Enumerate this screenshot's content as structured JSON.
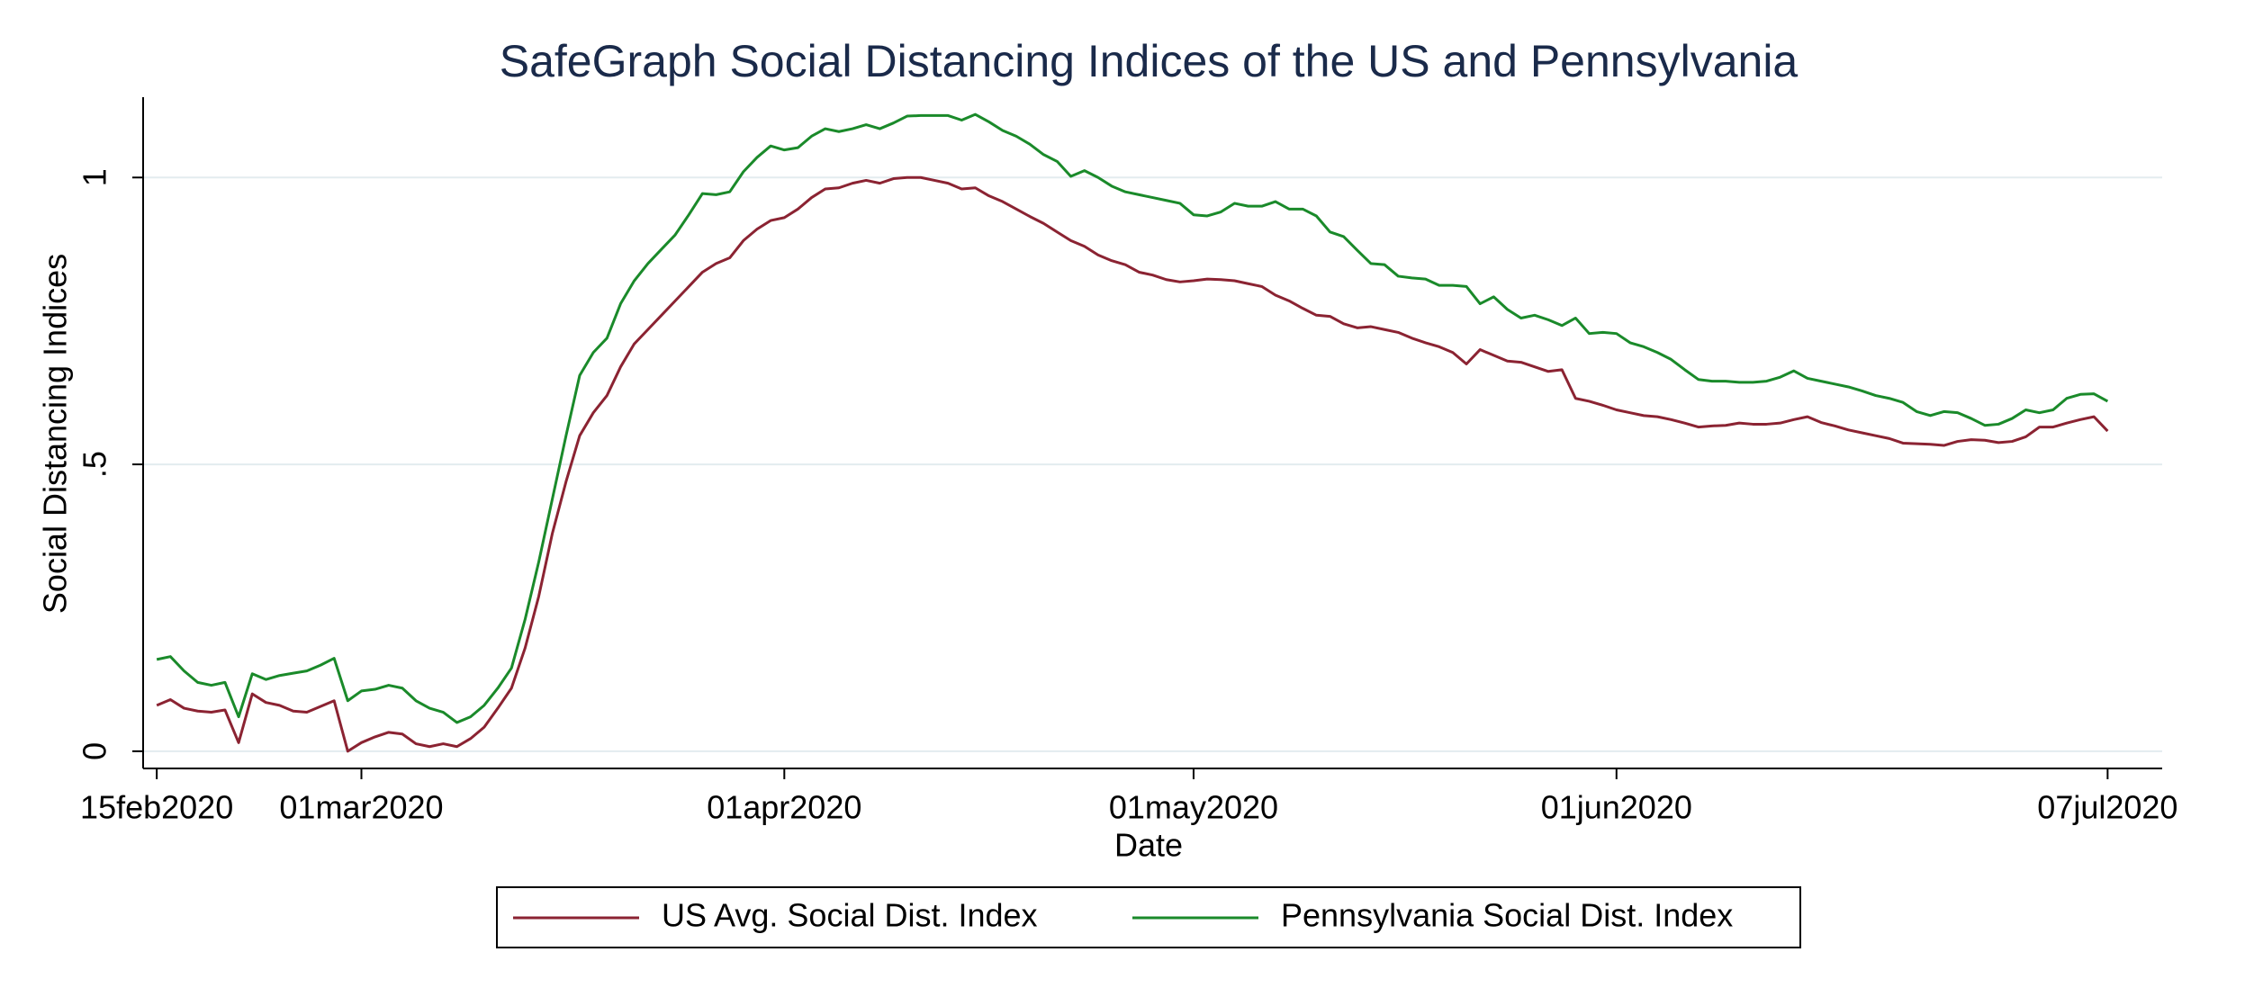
{
  "chart_data": {
    "type": "line",
    "title": "SafeGraph Social Distancing Indices of the US and Pennsylvania",
    "xlabel": "Date",
    "ylabel": "Social Distancing Indices",
    "x": [
      "2020-02-15",
      "2020-02-16",
      "2020-02-17",
      "2020-02-18",
      "2020-02-19",
      "2020-02-20",
      "2020-02-21",
      "2020-02-22",
      "2020-02-23",
      "2020-02-24",
      "2020-02-25",
      "2020-02-26",
      "2020-02-27",
      "2020-02-28",
      "2020-02-29",
      "2020-03-01",
      "2020-03-02",
      "2020-03-03",
      "2020-03-04",
      "2020-03-05",
      "2020-03-06",
      "2020-03-07",
      "2020-03-08",
      "2020-03-09",
      "2020-03-10",
      "2020-03-11",
      "2020-03-12",
      "2020-03-13",
      "2020-03-14",
      "2020-03-15",
      "2020-03-16",
      "2020-03-17",
      "2020-03-18",
      "2020-03-19",
      "2020-03-20",
      "2020-03-21",
      "2020-03-22",
      "2020-03-23",
      "2020-03-24",
      "2020-03-25",
      "2020-03-26",
      "2020-03-27",
      "2020-03-28",
      "2020-03-29",
      "2020-03-30",
      "2020-03-31",
      "2020-04-01",
      "2020-04-02",
      "2020-04-03",
      "2020-04-04",
      "2020-04-05",
      "2020-04-06",
      "2020-04-07",
      "2020-04-08",
      "2020-04-09",
      "2020-04-10",
      "2020-04-11",
      "2020-04-12",
      "2020-04-13",
      "2020-04-14",
      "2020-04-15",
      "2020-04-16",
      "2020-04-17",
      "2020-04-18",
      "2020-04-19",
      "2020-04-20",
      "2020-04-21",
      "2020-04-22",
      "2020-04-23",
      "2020-04-24",
      "2020-04-25",
      "2020-04-26",
      "2020-04-27",
      "2020-04-28",
      "2020-04-29",
      "2020-04-30",
      "2020-05-01",
      "2020-05-02",
      "2020-05-03",
      "2020-05-04",
      "2020-05-05",
      "2020-05-06",
      "2020-05-07",
      "2020-05-08",
      "2020-05-09",
      "2020-05-10",
      "2020-05-11",
      "2020-05-12",
      "2020-05-13",
      "2020-05-14",
      "2020-05-15",
      "2020-05-16",
      "2020-05-17",
      "2020-05-18",
      "2020-05-19",
      "2020-05-20",
      "2020-05-21",
      "2020-05-22",
      "2020-05-23",
      "2020-05-24",
      "2020-05-25",
      "2020-05-26",
      "2020-05-27",
      "2020-05-28",
      "2020-05-29",
      "2020-05-30",
      "2020-05-31",
      "2020-06-01",
      "2020-06-02",
      "2020-06-03",
      "2020-06-04",
      "2020-06-05",
      "2020-06-06",
      "2020-06-07",
      "2020-06-08",
      "2020-06-09",
      "2020-06-10",
      "2020-06-11",
      "2020-06-12",
      "2020-06-13",
      "2020-06-14",
      "2020-06-15",
      "2020-06-16",
      "2020-06-17",
      "2020-06-18",
      "2020-06-19",
      "2020-06-20",
      "2020-06-21",
      "2020-06-22",
      "2020-06-23",
      "2020-06-24",
      "2020-06-25",
      "2020-06-26",
      "2020-06-27",
      "2020-06-28",
      "2020-06-29",
      "2020-06-30",
      "2020-07-01",
      "2020-07-02",
      "2020-07-03",
      "2020-07-04",
      "2020-07-05",
      "2020-07-06",
      "2020-07-07"
    ],
    "series": [
      {
        "name": "US Avg. Social Dist. Index",
        "color": "#8b2332",
        "values": [
          0.08,
          0.09,
          0.075,
          0.07,
          0.068,
          0.072,
          0.015,
          0.1,
          0.085,
          0.08,
          0.07,
          0.068,
          0.078,
          0.088,
          0.0,
          0.015,
          0.025,
          0.033,
          0.03,
          0.013,
          0.008,
          0.013,
          0.008,
          0.022,
          0.042,
          0.075,
          0.11,
          0.18,
          0.27,
          0.38,
          0.47,
          0.55,
          0.59,
          0.62,
          0.67,
          0.71,
          0.735,
          0.76,
          0.785,
          0.81,
          0.835,
          0.85,
          0.86,
          0.89,
          0.91,
          0.925,
          0.93,
          0.945,
          0.965,
          0.98,
          0.982,
          0.99,
          0.995,
          0.99,
          0.998,
          1.0,
          1.0,
          0.995,
          0.99,
          0.98,
          0.982,
          0.968,
          0.958,
          0.945,
          0.932,
          0.92,
          0.905,
          0.89,
          0.88,
          0.865,
          0.855,
          0.848,
          0.835,
          0.83,
          0.822,
          0.818,
          0.82,
          0.823,
          0.822,
          0.82,
          0.815,
          0.81,
          0.795,
          0.785,
          0.772,
          0.76,
          0.758,
          0.745,
          0.738,
          0.74,
          0.735,
          0.73,
          0.72,
          0.712,
          0.705,
          0.695,
          0.675,
          0.7,
          0.69,
          0.68,
          0.678,
          0.67,
          0.662,
          0.665,
          0.615,
          0.61,
          0.603,
          0.595,
          0.59,
          0.585,
          0.583,
          0.578,
          0.572,
          0.565,
          0.567,
          0.568,
          0.572,
          0.57,
          0.57,
          0.572,
          0.578,
          0.583,
          0.573,
          0.567,
          0.56,
          0.555,
          0.55,
          0.545,
          0.537,
          0.536,
          0.535,
          0.533,
          0.54,
          0.543,
          0.542,
          0.538,
          0.54,
          0.548,
          0.565,
          0.565,
          0.572,
          0.578,
          0.583,
          0.558
        ]
      },
      {
        "name": "Pennsylvania Social Dist. Index",
        "color": "#1a8a2a",
        "values": [
          0.16,
          0.165,
          0.14,
          0.12,
          0.115,
          0.12,
          0.06,
          0.135,
          0.125,
          0.132,
          0.136,
          0.14,
          0.15,
          0.162,
          0.088,
          0.105,
          0.108,
          0.115,
          0.11,
          0.088,
          0.075,
          0.068,
          0.05,
          0.06,
          0.08,
          0.11,
          0.145,
          0.23,
          0.33,
          0.44,
          0.55,
          0.655,
          0.695,
          0.72,
          0.78,
          0.82,
          0.85,
          0.875,
          0.9,
          0.935,
          0.972,
          0.97,
          0.975,
          1.01,
          1.035,
          1.055,
          1.048,
          1.052,
          1.072,
          1.085,
          1.08,
          1.085,
          1.092,
          1.085,
          1.095,
          1.107,
          1.108,
          1.108,
          1.108,
          1.1,
          1.11,
          1.097,
          1.082,
          1.072,
          1.058,
          1.04,
          1.028,
          1.002,
          1.012,
          1.0,
          0.985,
          0.975,
          0.97,
          0.965,
          0.96,
          0.955,
          0.935,
          0.933,
          0.94,
          0.955,
          0.95,
          0.95,
          0.958,
          0.945,
          0.945,
          0.933,
          0.905,
          0.897,
          0.873,
          0.85,
          0.848,
          0.828,
          0.825,
          0.823,
          0.812,
          0.812,
          0.81,
          0.78,
          0.792,
          0.77,
          0.755,
          0.76,
          0.752,
          0.742,
          0.755,
          0.728,
          0.73,
          0.728,
          0.712,
          0.705,
          0.695,
          0.683,
          0.665,
          0.648,
          0.645,
          0.645,
          0.643,
          0.643,
          0.645,
          0.652,
          0.663,
          0.65,
          0.645,
          0.64,
          0.635,
          0.628,
          0.62,
          0.615,
          0.608,
          0.592,
          0.585,
          0.592,
          0.59,
          0.58,
          0.568,
          0.57,
          0.58,
          0.595,
          0.59,
          0.595,
          0.615,
          0.622,
          0.623,
          0.61
        ]
      }
    ],
    "xlim": [
      "2020-02-14",
      "2020-07-11"
    ],
    "xticks": [
      {
        "value": "2020-02-15",
        "label": "15feb2020"
      },
      {
        "value": "2020-03-01",
        "label": "01mar2020"
      },
      {
        "value": "2020-04-01",
        "label": "01apr2020"
      },
      {
        "value": "2020-05-01",
        "label": "01may2020"
      },
      {
        "value": "2020-06-01",
        "label": "01jun2020"
      },
      {
        "value": "2020-07-07",
        "label": "07jul2020"
      }
    ],
    "ylim": [
      -0.03,
      1.14
    ],
    "yticks": [
      0,
      {
        "value": 0.5,
        "label": ".5"
      },
      1
    ],
    "grid": true,
    "legend": "bottom"
  }
}
